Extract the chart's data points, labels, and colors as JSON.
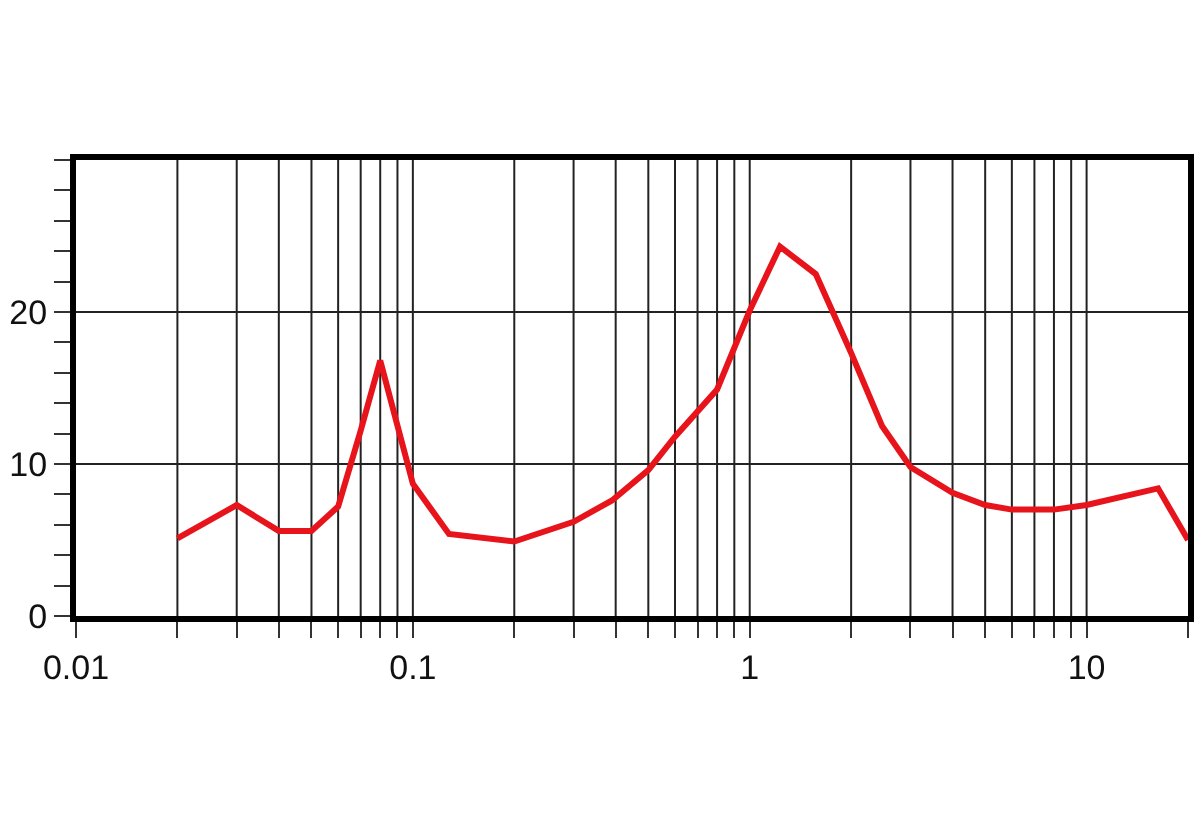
{
  "chart_data": {
    "type": "line",
    "log": "x",
    "grid": true,
    "marker": "none",
    "line_style": "solid",
    "x": [
      0.02,
      0.03,
      0.04,
      0.05,
      0.06,
      0.07,
      0.08,
      0.1,
      0.128,
      0.2,
      0.3,
      0.39,
      0.5,
      0.6,
      0.8,
      1,
      1.23,
      1.57,
      2,
      2.47,
      3,
      4,
      5,
      6,
      8,
      10,
      16.3,
      20
    ],
    "series": [
      {
        "color": "#e8141c",
        "values": [
          5.1,
          7.3,
          5.6,
          5.6,
          7.2,
          12.2,
          16.8,
          8.7,
          5.4,
          4.9,
          6.2,
          7.6,
          9.6,
          11.8,
          14.9,
          20.1,
          24.3,
          22.5,
          17.3,
          12.5,
          9.8,
          8.1,
          7.3,
          7.0,
          7.0,
          7.3,
          8.4,
          5.0
        ]
      }
    ],
    "xlim": [
      0.01,
      20
    ],
    "xticks": [
      0.01,
      {
        "value": 0.02,
        "label": null
      },
      {
        "value": 0.03,
        "label": null
      },
      {
        "value": 0.04,
        "label": null
      },
      {
        "value": 0.05,
        "label": null
      },
      {
        "value": 0.06,
        "label": null
      },
      {
        "value": 0.07,
        "label": null
      },
      {
        "value": 0.08,
        "label": null
      },
      {
        "value": 0.09,
        "label": null
      },
      0.1,
      {
        "value": 0.2,
        "label": null
      },
      {
        "value": 0.3,
        "label": null
      },
      {
        "value": 0.4,
        "label": null
      },
      {
        "value": 0.5,
        "label": null
      },
      {
        "value": 0.6,
        "label": null
      },
      {
        "value": 0.7,
        "label": null
      },
      {
        "value": 0.8,
        "label": null
      },
      {
        "value": 0.9,
        "label": null
      },
      1,
      {
        "value": 2,
        "label": null
      },
      {
        "value": 3,
        "label": null
      },
      {
        "value": 4,
        "label": null
      },
      {
        "value": 5,
        "label": null
      },
      {
        "value": 6,
        "label": null
      },
      {
        "value": 7,
        "label": null
      },
      {
        "value": 8,
        "label": null
      },
      {
        "value": 9,
        "label": null
      },
      10,
      {
        "value": 20,
        "label": null
      }
    ],
    "ylim": [
      0,
      30
    ],
    "yticks": [
      0,
      {
        "value": 2,
        "label": null
      },
      {
        "value": 4,
        "label": null
      },
      {
        "value": 6,
        "label": null
      },
      {
        "value": 8,
        "label": null
      },
      10,
      {
        "value": 12,
        "label": null
      },
      {
        "value": 14,
        "label": null
      },
      {
        "value": 16,
        "label": null
      },
      {
        "value": 18,
        "label": null
      },
      20,
      {
        "value": 22,
        "label": null
      },
      {
        "value": 24,
        "label": null
      },
      {
        "value": 26,
        "label": null
      },
      {
        "value": 28,
        "label": null
      },
      {
        "value": 30,
        "label": null
      }
    ]
  }
}
